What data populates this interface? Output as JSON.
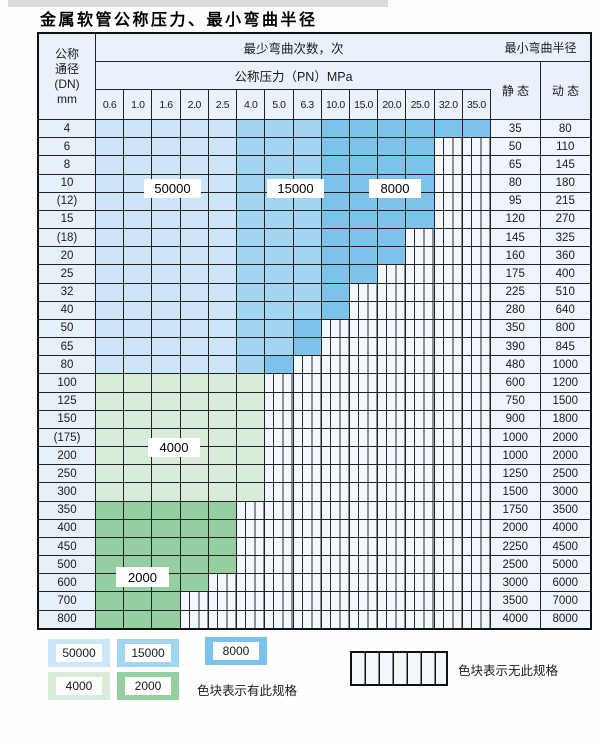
{
  "title": "金属软管公称压力、最小弯曲半径",
  "colors": {
    "c50000": "#cde6f7",
    "c15000": "#a4d5f0",
    "c8000": "#7cc3ec",
    "c4000": "#d9ecda",
    "c2000": "#96cf9f",
    "hatch_bg": "#f2f7fd",
    "hatch_line": "#2b2b2b",
    "header_bg": "#e9f2fb",
    "row_label_bg": "#e6f0f9",
    "value_bg": "#eef5fc"
  },
  "table": {
    "header": {
      "dn_lines": [
        "公称",
        "通径",
        "(DN)",
        "mm"
      ],
      "bend_cycles": "最少弯曲次数，次",
      "pressure": "公称压力（PN）MPa",
      "radius": "最小弯曲半径",
      "static_label": "静 态",
      "dynamic_label": "动 态",
      "pressure_cols": [
        "0.6",
        "1.0",
        "1.6",
        "2.0",
        "2.5",
        "4.0",
        "5.0",
        "6.3",
        "10.0",
        "15.0",
        "20.0",
        "25.0",
        "32.0",
        "35.0"
      ]
    },
    "zone_legend_map": {
      "L": "50000",
      "M": "15000",
      "D": "8000",
      "G": "4000",
      "H": "2000",
      "X": "no-spec"
    },
    "rows": [
      {
        "dn": "4",
        "cells": "LLLLLMMMDDDDDD",
        "static": "35",
        "dynamic": "80"
      },
      {
        "dn": "6",
        "cells": "LLLLLMMMDDDDXX",
        "static": "50",
        "dynamic": "110"
      },
      {
        "dn": "8",
        "cells": "LLLLLMMMDDDDXX",
        "static": "65",
        "dynamic": "145"
      },
      {
        "dn": "10",
        "cells": "LLLLLMMMDDDDXX",
        "static": "80",
        "dynamic": "180"
      },
      {
        "dn": "(12)",
        "cells": "LLLLLMMMDDDDXX",
        "static": "95",
        "dynamic": "215"
      },
      {
        "dn": "15",
        "cells": "LLLLLMMMDDDDXX",
        "static": "120",
        "dynamic": "270"
      },
      {
        "dn": "(18)",
        "cells": "LLLLLMMMDDDXXX",
        "static": "145",
        "dynamic": "325"
      },
      {
        "dn": "20",
        "cells": "LLLLLMMMDDDXXX",
        "static": "160",
        "dynamic": "360"
      },
      {
        "dn": "25",
        "cells": "LLLLLMMMDDXXXX",
        "static": "175",
        "dynamic": "400"
      },
      {
        "dn": "32",
        "cells": "LLLLLMMMDXXXXX",
        "static": "225",
        "dynamic": "510"
      },
      {
        "dn": "40",
        "cells": "LLLLLMMMDXXXXX",
        "static": "280",
        "dynamic": "640"
      },
      {
        "dn": "50",
        "cells": "LLLLLMMDXXXXXX",
        "static": "350",
        "dynamic": "800"
      },
      {
        "dn": "65",
        "cells": "LLLLLMMDXXXXXX",
        "static": "390",
        "dynamic": "845"
      },
      {
        "dn": "80",
        "cells": "LLLLLMDXXXXXXX",
        "static": "480",
        "dynamic": "1000"
      },
      {
        "dn": "100",
        "cells": "GGGGGGXXXXXXXX",
        "static": "600",
        "dynamic": "1200"
      },
      {
        "dn": "125",
        "cells": "GGGGGGXXXXXXXX",
        "static": "750",
        "dynamic": "1500"
      },
      {
        "dn": "150",
        "cells": "GGGGGGXXXXXXXX",
        "static": "900",
        "dynamic": "1800"
      },
      {
        "dn": "(175)",
        "cells": "GGGGGGXXXXXXXX",
        "static": "1000",
        "dynamic": "2000"
      },
      {
        "dn": "200",
        "cells": "GGGGGGXXXXXXXX",
        "static": "1000",
        "dynamic": "2000"
      },
      {
        "dn": "250",
        "cells": "GGGGGGXXXXXXXX",
        "static": "1250",
        "dynamic": "2500"
      },
      {
        "dn": "300",
        "cells": "GGGGGGXXXXXXXX",
        "static": "1500",
        "dynamic": "3000"
      },
      {
        "dn": "350",
        "cells": "HHHHHXXXXXXXXX",
        "static": "1750",
        "dynamic": "3500"
      },
      {
        "dn": "400",
        "cells": "HHHHHXXXXXXXXX",
        "static": "2000",
        "dynamic": "4000"
      },
      {
        "dn": "450",
        "cells": "HHHHHXXXXXXXXX",
        "static": "2250",
        "dynamic": "4500"
      },
      {
        "dn": "500",
        "cells": "HHHHHXXXXXXXXX",
        "static": "2500",
        "dynamic": "5000"
      },
      {
        "dn": "600",
        "cells": "HHHHXXXXXXXXXX",
        "static": "3000",
        "dynamic": "6000"
      },
      {
        "dn": "700",
        "cells": "HHHXXXXXXXXXXX",
        "static": "3500",
        "dynamic": "7000"
      },
      {
        "dn": "800",
        "cells": "HHHXXXXXXXXXXX",
        "static": "4000",
        "dynamic": "8000"
      }
    ]
  },
  "region_labels": {
    "l50000": "50000",
    "l15000": "15000",
    "l8000": "8000",
    "l4000": "4000",
    "l2000": "2000"
  },
  "legend": {
    "items": [
      {
        "label": "50000"
      },
      {
        "label": "15000"
      },
      {
        "label": "8000"
      },
      {
        "label": "4000"
      },
      {
        "label": "2000"
      }
    ],
    "has_spec_note": "色块表示有此规格",
    "no_spec_note": "色块表示无此规格"
  }
}
